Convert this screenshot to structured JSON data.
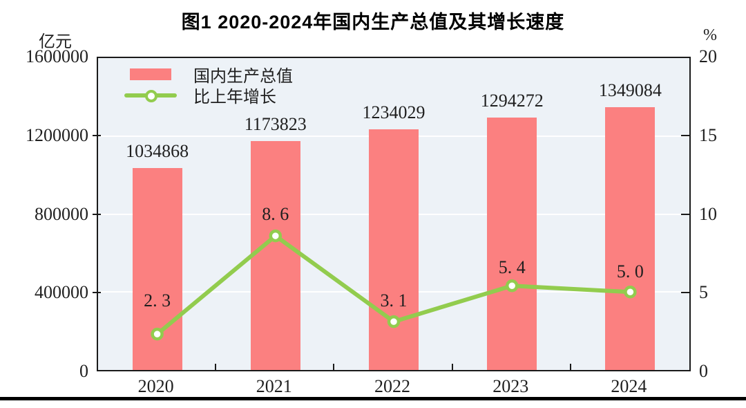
{
  "title": "图1  2020-2024年国内生产总值及其增长速度",
  "left_axis": {
    "unit": "亿元",
    "ticks": [
      "1600000",
      "1200000",
      "800000",
      "400000",
      "0"
    ]
  },
  "right_axis": {
    "unit": "%",
    "ticks": [
      "20",
      "15",
      "10",
      "5",
      "0"
    ]
  },
  "legend": {
    "items": [
      {
        "label": "国内生产总值",
        "type": "bar"
      },
      {
        "label": "比上年增长",
        "type": "line"
      }
    ]
  },
  "chart_data": {
    "type": "bar",
    "title": "图1  2020-2024年国内生产总值及其增长速度",
    "categories": [
      "2020",
      "2021",
      "2022",
      "2023",
      "2024"
    ],
    "series": [
      {
        "name": "国内生产总值",
        "type": "bar",
        "axis": "left",
        "unit": "亿元",
        "ylim": [
          0,
          1600000
        ],
        "yticks": [
          0,
          400000,
          800000,
          1200000,
          1600000
        ],
        "values": [
          1034868,
          1173823,
          1234029,
          1294272,
          1349084
        ],
        "labels": [
          "1034868",
          "1173823",
          "1234029",
          "1294272",
          "1349084"
        ]
      },
      {
        "name": "比上年增长",
        "type": "line",
        "axis": "right",
        "unit": "%",
        "ylim": [
          0,
          20
        ],
        "yticks": [
          0,
          5,
          10,
          15,
          20
        ],
        "values": [
          2.3,
          8.6,
          3.1,
          5.4,
          5.0
        ],
        "labels": [
          "2. 3",
          "8. 6",
          "3. 1",
          "5. 4",
          "5. 0"
        ]
      }
    ],
    "grid": "horizontal-white",
    "legend_position": "top-left-inside"
  },
  "colors": {
    "bar": "#fb8080",
    "line": "#92cc4e",
    "marker_fill": "#ffffff",
    "plot_bg": "#edf2f7",
    "grid": "#ffffff",
    "frame": "#1a1a1a",
    "text": "#1f1f1f"
  }
}
